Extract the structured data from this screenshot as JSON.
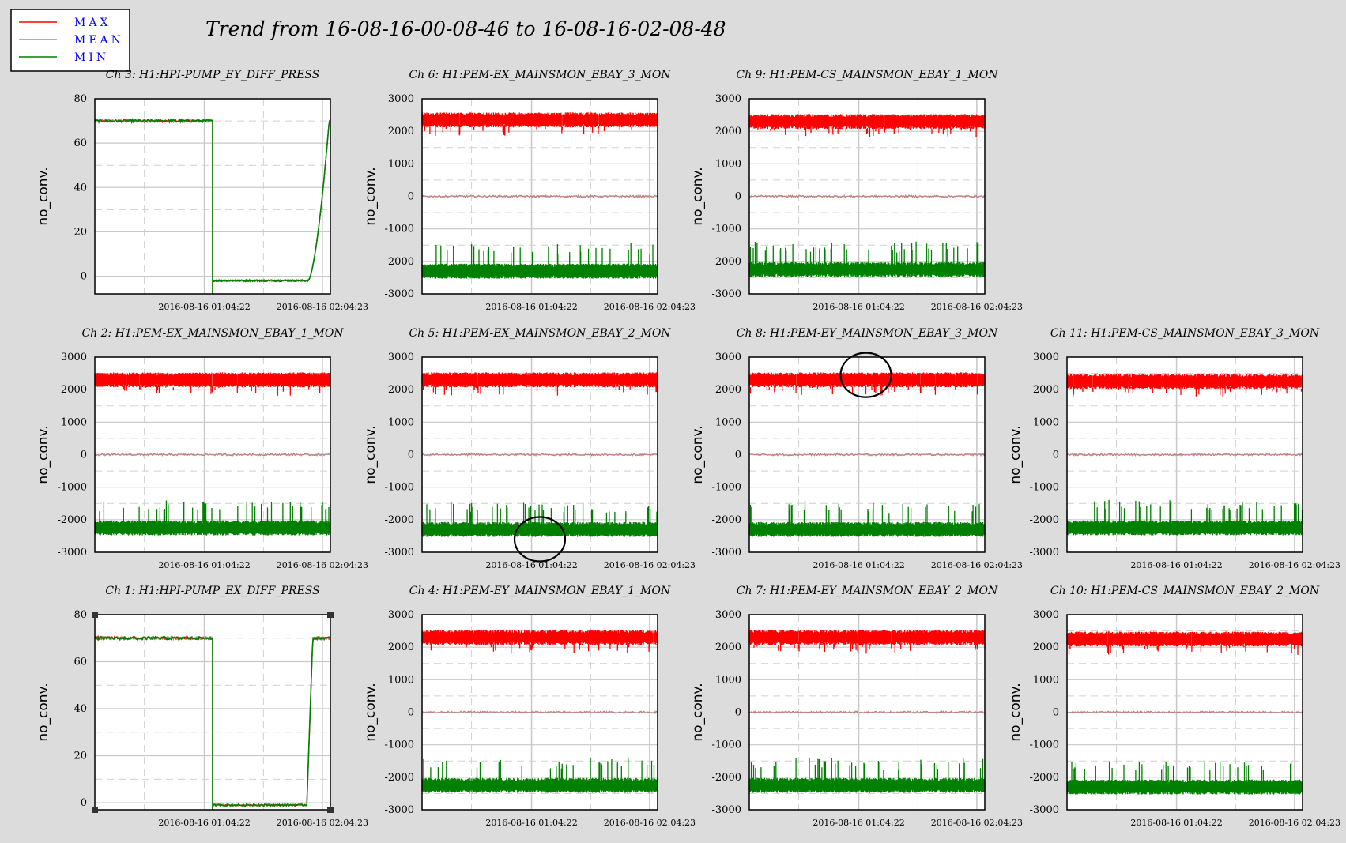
{
  "title": "Trend from 16-08-16-00-08-46 to 16-08-16-02-08-48",
  "legend": [
    {
      "label": "MAX",
      "color": "#ff0000"
    },
    {
      "label": "MEAN",
      "color": "#c08080"
    },
    {
      "label": "MIN",
      "color": "#008000"
    }
  ],
  "label_color": "#0000ff",
  "highlight_circles": [
    {
      "panel": "ch5",
      "near_x": "2016-08-16 01:04:22",
      "near_y": -2600
    },
    {
      "panel": "ch8",
      "near_x": "2016-08-16 01:04:22",
      "near_y": 2450
    }
  ],
  "chart_data": [
    {
      "id": "ch3",
      "type": "line",
      "title": "Ch 3: H1:HPI-PUMP_EY_DIFF_PRESS",
      "ylabel": "no_conv.",
      "kind": "pump_ey",
      "ylim": [
        -8,
        80
      ],
      "yticks": [
        0,
        20,
        40,
        60,
        80
      ],
      "xticks": [
        "2016-08-16 01:04:22",
        "2016-08-16 02:04:23"
      ],
      "series": [
        {
          "name": "MAX",
          "levels": [
            70,
            -2
          ]
        },
        {
          "name": "MEAN",
          "levels": [
            70,
            -2
          ]
        },
        {
          "name": "MIN",
          "levels": [
            70,
            -2
          ]
        }
      ]
    },
    {
      "id": "ch6",
      "type": "line",
      "title": "Ch 6: H1:PEM-EX_MAINSMON_EBAY_3_MON",
      "ylabel": "no_conv.",
      "kind": "mains",
      "ylim": [
        -3000,
        3000
      ],
      "yticks": [
        -3000,
        -2000,
        -1000,
        0,
        1000,
        2000,
        3000
      ],
      "xticks": [
        "2016-08-16 01:04:22",
        "2016-08-16 02:04:23"
      ],
      "series": [
        {
          "name": "MAX",
          "center": 2350
        },
        {
          "name": "MEAN",
          "center": 0
        },
        {
          "name": "MIN",
          "center": -2300
        }
      ]
    },
    {
      "id": "ch9",
      "type": "line",
      "title": "Ch 9: H1:PEM-CS_MAINSMON_EBAY_1_MON",
      "ylabel": "no_conv.",
      "kind": "mains",
      "ylim": [
        -3000,
        3000
      ],
      "yticks": [
        -3000,
        -2000,
        -1000,
        0,
        1000,
        2000,
        3000
      ],
      "xticks": [
        "2016-08-16 01:04:22",
        "2016-08-16 02:04:23"
      ],
      "series": [
        {
          "name": "MAX",
          "center": 2300
        },
        {
          "name": "MEAN",
          "center": 0
        },
        {
          "name": "MIN",
          "center": -2250
        }
      ]
    },
    {
      "id": "ch2",
      "type": "line",
      "title": "Ch 2: H1:PEM-EX_MAINSMON_EBAY_1_MON",
      "ylabel": "no_conv.",
      "kind": "mains",
      "ylim": [
        -3000,
        3000
      ],
      "yticks": [
        -3000,
        -2000,
        -1000,
        0,
        1000,
        2000,
        3000
      ],
      "xticks": [
        "2016-08-16 01:04:22",
        "2016-08-16 02:04:23"
      ],
      "series": [
        {
          "name": "MAX",
          "center": 2300
        },
        {
          "name": "MEAN",
          "center": 0
        },
        {
          "name": "MIN",
          "center": -2250
        }
      ]
    },
    {
      "id": "ch5",
      "type": "line",
      "title": "Ch 5: H1:PEM-EX_MAINSMON_EBAY_2_MON",
      "ylabel": "no_conv.",
      "kind": "mains",
      "ylim": [
        -3000,
        3000
      ],
      "yticks": [
        -3000,
        -2000,
        -1000,
        0,
        1000,
        2000,
        3000
      ],
      "xticks": [
        "2016-08-16 01:04:22",
        "2016-08-16 02:04:23"
      ],
      "series": [
        {
          "name": "MAX",
          "center": 2300
        },
        {
          "name": "MEAN",
          "center": 0
        },
        {
          "name": "MIN",
          "center": -2300
        }
      ]
    },
    {
      "id": "ch8",
      "type": "line",
      "title": "Ch 8: H1:PEM-EY_MAINSMON_EBAY_3_MON",
      "ylabel": "no_conv.",
      "kind": "mains",
      "ylim": [
        -3000,
        3000
      ],
      "yticks": [
        -3000,
        -2000,
        -1000,
        0,
        1000,
        2000,
        3000
      ],
      "xticks": [
        "2016-08-16 01:04:22",
        "2016-08-16 02:04:23"
      ],
      "series": [
        {
          "name": "MAX",
          "center": 2300
        },
        {
          "name": "MEAN",
          "center": 0
        },
        {
          "name": "MIN",
          "center": -2300
        }
      ]
    },
    {
      "id": "ch11",
      "type": "line",
      "title": "Ch 11: H1:PEM-CS_MAINSMON_EBAY_3_MON",
      "ylabel": "no_conv.",
      "kind": "mains",
      "ylim": [
        -3000,
        3000
      ],
      "yticks": [
        -3000,
        -2000,
        -1000,
        0,
        1000,
        2000,
        3000
      ],
      "xticks": [
        "2016-08-16 01:04:22",
        "2016-08-16 02:04:23"
      ],
      "series": [
        {
          "name": "MAX",
          "center": 2250
        },
        {
          "name": "MEAN",
          "center": 0
        },
        {
          "name": "MIN",
          "center": -2250
        }
      ]
    },
    {
      "id": "ch1",
      "type": "line",
      "title": "Ch 1: H1:HPI-PUMP_EX_DIFF_PRESS",
      "ylabel": "no_conv.",
      "kind": "pump_ex",
      "ylim": [
        -3,
        80
      ],
      "yticks": [
        0,
        20,
        40,
        60,
        80
      ],
      "xticks": [
        "2016-08-16 01:04:22",
        "2016-08-16 02:04:23"
      ],
      "series": [
        {
          "name": "MAX",
          "levels": [
            70,
            -1
          ]
        },
        {
          "name": "MEAN",
          "levels": [
            70,
            -1
          ]
        },
        {
          "name": "MIN",
          "levels": [
            70,
            -1
          ]
        }
      ]
    },
    {
      "id": "ch4",
      "type": "line",
      "title": "Ch 4: H1:PEM-EY_MAINSMON_EBAY_1_MON",
      "ylabel": "no_conv.",
      "kind": "mains",
      "ylim": [
        -3000,
        3000
      ],
      "yticks": [
        -3000,
        -2000,
        -1000,
        0,
        1000,
        2000,
        3000
      ],
      "xticks": [
        "2016-08-16 01:04:22",
        "2016-08-16 02:04:23"
      ],
      "series": [
        {
          "name": "MAX",
          "center": 2300
        },
        {
          "name": "MEAN",
          "center": 0
        },
        {
          "name": "MIN",
          "center": -2250
        }
      ]
    },
    {
      "id": "ch7",
      "type": "line",
      "title": "Ch 7: H1:PEM-EY_MAINSMON_EBAY_2_MON",
      "ylabel": "no_conv.",
      "kind": "mains",
      "ylim": [
        -3000,
        3000
      ],
      "yticks": [
        -3000,
        -2000,
        -1000,
        0,
        1000,
        2000,
        3000
      ],
      "xticks": [
        "2016-08-16 01:04:22",
        "2016-08-16 02:04:23"
      ],
      "series": [
        {
          "name": "MAX",
          "center": 2300
        },
        {
          "name": "MEAN",
          "center": 0
        },
        {
          "name": "MIN",
          "center": -2250
        }
      ]
    },
    {
      "id": "ch10",
      "type": "line",
      "title": "Ch 10: H1:PEM-CS_MAINSMON_EBAY_2_MON",
      "ylabel": "no_conv.",
      "kind": "mains",
      "ylim": [
        -3000,
        3000
      ],
      "yticks": [
        -3000,
        -2000,
        -1000,
        0,
        1000,
        2000,
        3000
      ],
      "xticks": [
        "2016-08-16 01:04:22",
        "2016-08-16 02:04:23"
      ],
      "series": [
        {
          "name": "MAX",
          "center": 2250
        },
        {
          "name": "MEAN",
          "center": 0
        },
        {
          "name": "MIN",
          "center": -2300
        }
      ]
    }
  ]
}
